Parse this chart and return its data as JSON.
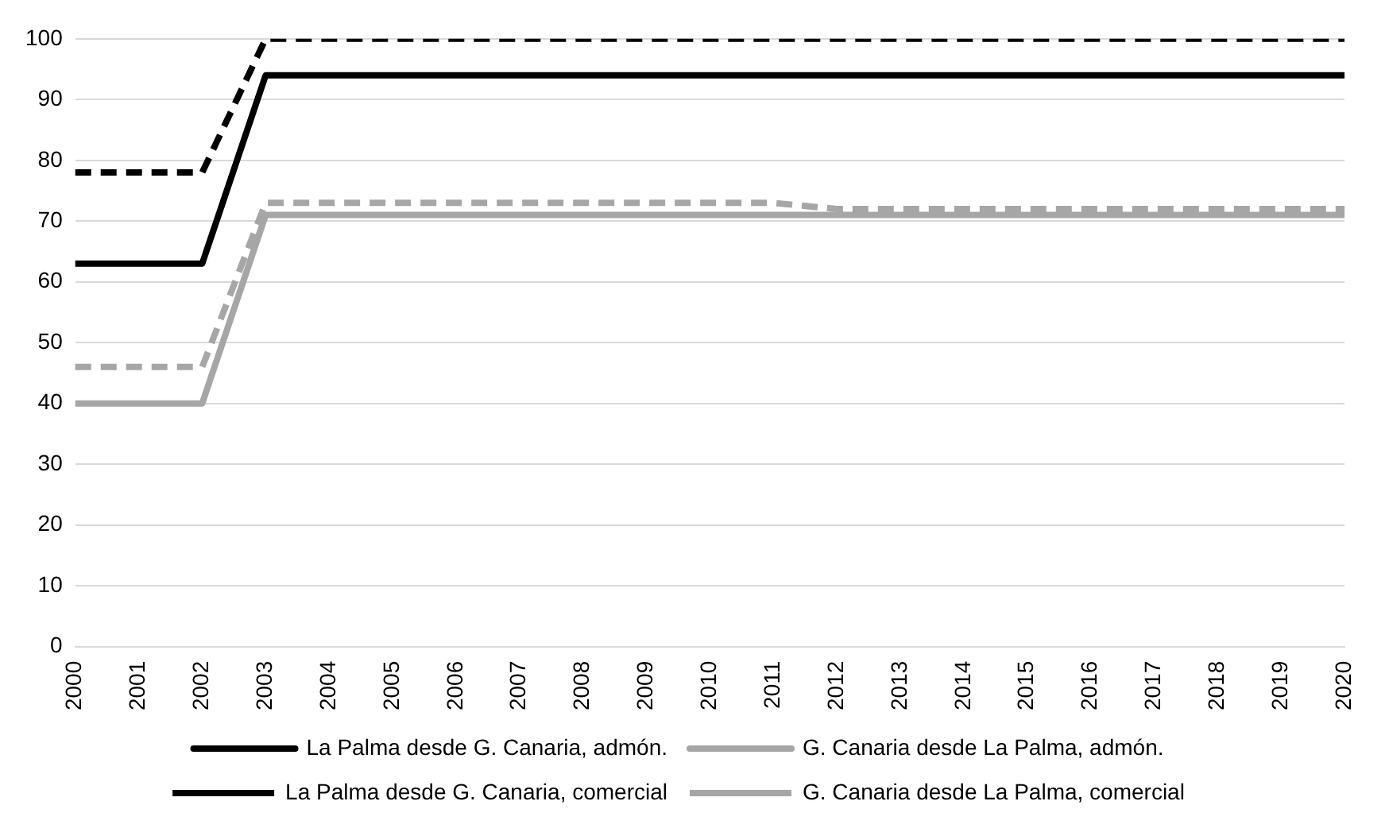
{
  "chart_data": {
    "type": "line",
    "categories": [
      "2000",
      "2001",
      "2002",
      "2003",
      "2004",
      "2005",
      "2006",
      "2007",
      "2008",
      "2009",
      "2010",
      "2011",
      "2012",
      "2013",
      "2014",
      "2015",
      "2016",
      "2017",
      "2018",
      "2019",
      "2020"
    ],
    "series": [
      {
        "name": "La Palma desde G. Canaria, admón.",
        "color": "#000000",
        "line_style": "solid",
        "values": [
          63,
          63,
          63,
          94,
          94,
          94,
          94,
          94,
          94,
          94,
          94,
          94,
          94,
          94,
          94,
          94,
          94,
          94,
          94,
          94,
          94
        ]
      },
      {
        "name": "G. Canaria desde La Palma, admón.",
        "color": "#a6a6a6",
        "line_style": "solid",
        "values": [
          40,
          40,
          40,
          71,
          71,
          71,
          71,
          71,
          71,
          71,
          71,
          71,
          71,
          71,
          71,
          71,
          71,
          71,
          71,
          71,
          71
        ]
      },
      {
        "name": "La Palma desde G. Canaria, comercial",
        "color": "#000000",
        "line_style": "dashed",
        "values": [
          78,
          78,
          78,
          100,
          100,
          100,
          100,
          100,
          100,
          100,
          100,
          100,
          100,
          100,
          100,
          100,
          100,
          100,
          100,
          100,
          100
        ]
      },
      {
        "name": "G. Canaria desde La Palma, comercial",
        "color": "#a6a6a6",
        "line_style": "dashed",
        "values": [
          46,
          46,
          46,
          73,
          73,
          73,
          73,
          73,
          73,
          73,
          73,
          73,
          72,
          72,
          72,
          72,
          72,
          72,
          72,
          72,
          72
        ]
      }
    ],
    "ylim": [
      0,
      100
    ],
    "yticks": [
      0,
      10,
      20,
      30,
      40,
      50,
      60,
      70,
      80,
      90,
      100
    ],
    "grid": "y",
    "legend": "bottom",
    "marker": "none"
  }
}
